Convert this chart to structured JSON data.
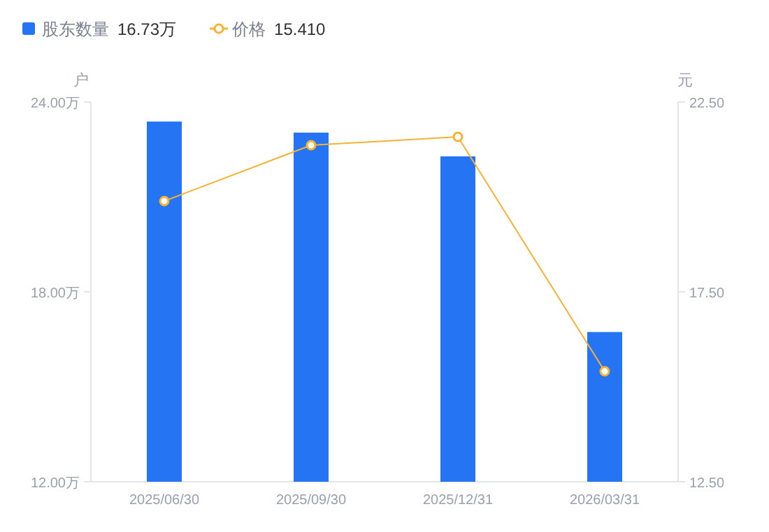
{
  "chart_data": {
    "type": "bar",
    "ylabel": "户",
    "y2label": "元",
    "categories": [
      "2025/06/30",
      "2025/09/30",
      "2025/12/31",
      "2026/03/31"
    ],
    "series": [
      {
        "name": "股东数量",
        "color": "#2574f3",
        "values": [
          23.38,
          23.03,
          22.28,
          16.73
        ]
      },
      {
        "name": "价格",
        "type": "line",
        "axis": "y2",
        "color": "#f7b233",
        "marker": "circle",
        "values": [
          19.89,
          21.36,
          21.58,
          15.41
        ]
      }
    ],
    "ylim": [
      12,
      24
    ],
    "yticks": [
      {
        "value": 12,
        "label": "12.00万"
      },
      {
        "value": 18,
        "label": "18.00万"
      },
      {
        "value": 24,
        "label": "24.00万"
      }
    ],
    "y2lim": [
      12.5,
      22.5
    ],
    "y2ticks": [
      {
        "value": 12.5,
        "label": "12.50"
      },
      {
        "value": 17.5,
        "label": "17.50"
      },
      {
        "value": 22.5,
        "label": "22.50"
      }
    ],
    "annotations": [
      "16.73万",
      "15.410"
    ],
    "legend": "top left",
    "grid": false
  }
}
